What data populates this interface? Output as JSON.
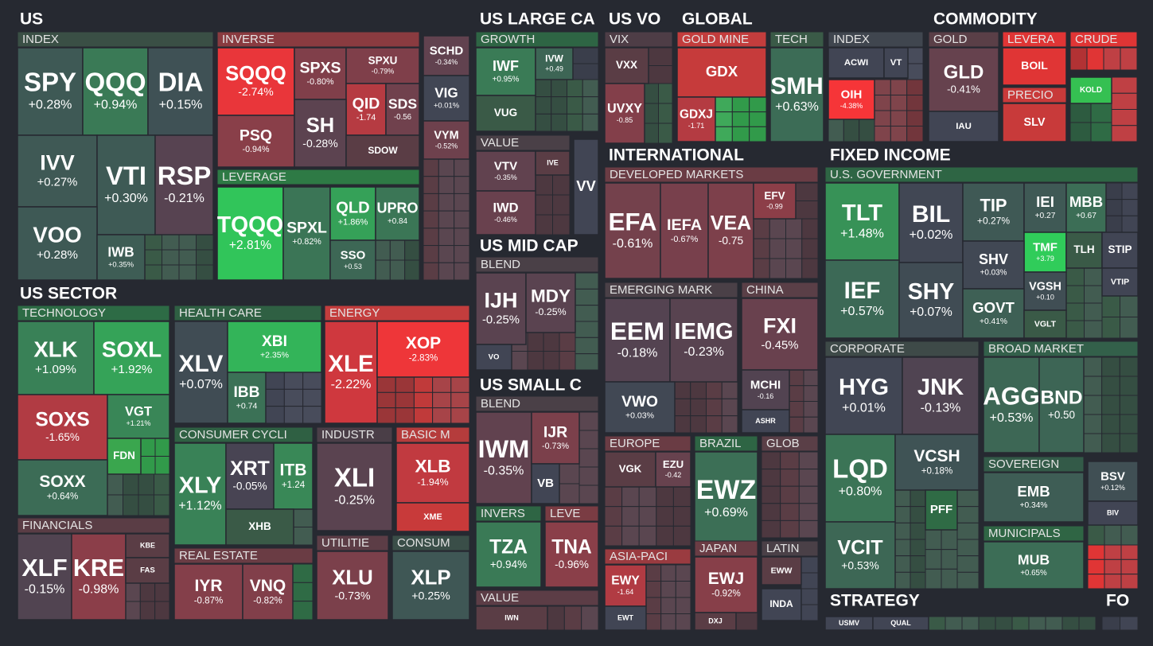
{
  "sections": [
    {
      "title": "US",
      "groups": [
        {
          "title": "INDEX",
          "tiles": [
            {
              "ticker": "SPY",
              "change": "+0.28%"
            },
            {
              "ticker": "QQQ",
              "change": "+0.94%"
            },
            {
              "ticker": "DIA",
              "change": "+0.15%"
            },
            {
              "ticker": "IVV",
              "change": "+0.27%"
            },
            {
              "ticker": "VTI",
              "change": "+0.30%"
            },
            {
              "ticker": "RSP",
              "change": "-0.21%"
            },
            {
              "ticker": "VOO",
              "change": "+0.28%"
            },
            {
              "ticker": "IWB",
              "change": "+0.35%"
            }
          ]
        },
        {
          "title": "INVERSE",
          "tiles": [
            {
              "ticker": "SQQQ",
              "change": "-2.74%"
            },
            {
              "ticker": "SPXS",
              "change": "-0.80%"
            },
            {
              "ticker": "SPXU",
              "change": "-0.79%"
            },
            {
              "ticker": "QID",
              "change": "-1.74"
            },
            {
              "ticker": "SDS",
              "change": "-0.56"
            },
            {
              "ticker": "PSQ",
              "change": "-0.94%"
            },
            {
              "ticker": "SH",
              "change": "-0.28%"
            },
            {
              "ticker": "SDOW"
            }
          ]
        },
        {
          "title": "LEVERAGE",
          "tiles": [
            {
              "ticker": "TQQQ",
              "change": "+2.81%"
            },
            {
              "ticker": "SPXL",
              "change": "+0.82%"
            },
            {
              "ticker": "QLD",
              "change": "+1.86%"
            },
            {
              "ticker": "UPRO",
              "change": "+0.84"
            },
            {
              "ticker": "SSO",
              "change": "+0.53"
            }
          ]
        },
        {
          "tiles": [
            {
              "ticker": "SCHD",
              "change": "-0.34%"
            },
            {
              "ticker": "VIG",
              "change": "+0.01%"
            },
            {
              "ticker": "VYM",
              "change": "-0.52%"
            }
          ]
        }
      ]
    },
    {
      "title": "US SECTOR",
      "groups": [
        {
          "title": "TECHNOLOGY",
          "tiles": [
            {
              "ticker": "XLK",
              "change": "+1.09%"
            },
            {
              "ticker": "SOXL",
              "change": "+1.92%"
            },
            {
              "ticker": "SOXS",
              "change": "-1.65%"
            },
            {
              "ticker": "VGT",
              "change": "+1.21%"
            },
            {
              "ticker": "FDN"
            },
            {
              "ticker": "SOXX",
              "change": "+0.64%"
            }
          ]
        },
        {
          "title": "FINANCIALS",
          "tiles": [
            {
              "ticker": "XLF",
              "change": "-0.15%"
            },
            {
              "ticker": "KRE",
              "change": "-0.98%"
            },
            {
              "ticker": "KBE"
            },
            {
              "ticker": "FAS"
            }
          ]
        },
        {
          "title": "HEALTH CARE",
          "tiles": [
            {
              "ticker": "XLV",
              "change": "+0.07%"
            },
            {
              "ticker": "XBI",
              "change": "+2.35%"
            },
            {
              "ticker": "IBB",
              "change": "+0.74"
            }
          ]
        },
        {
          "title": "CONSUMER CYCLI",
          "tiles": [
            {
              "ticker": "XLY",
              "change": "+1.12%"
            },
            {
              "ticker": "XRT",
              "change": "-0.05%"
            },
            {
              "ticker": "ITB",
              "change": "+1.24"
            },
            {
              "ticker": "XHB"
            }
          ]
        },
        {
          "title": "REAL ESTATE",
          "tiles": [
            {
              "ticker": "IYR",
              "change": "-0.87%"
            },
            {
              "ticker": "VNQ",
              "change": "-0.82%"
            }
          ]
        },
        {
          "title": "ENERGY",
          "tiles": [
            {
              "ticker": "XLE",
              "change": "-2.22%"
            },
            {
              "ticker": "XOP",
              "change": "-2.83%"
            }
          ]
        },
        {
          "title": "INDUSTR",
          "tiles": [
            {
              "ticker": "XLI",
              "change": "-0.25%"
            }
          ]
        },
        {
          "title": "BASIC M",
          "tiles": [
            {
              "ticker": "XLB",
              "change": "-1.94%"
            },
            {
              "ticker": "XME"
            }
          ]
        },
        {
          "title": "UTILITIE",
          "tiles": [
            {
              "ticker": "XLU",
              "change": "-0.73%"
            }
          ]
        },
        {
          "title": "CONSUM",
          "tiles": [
            {
              "ticker": "XLP",
              "change": "+0.25%"
            }
          ]
        }
      ]
    },
    {
      "title": "US LARGE CA",
      "groups": [
        {
          "title": "GROWTH",
          "tiles": [
            {
              "ticker": "IWF",
              "change": "+0.95%"
            },
            {
              "ticker": "IVW",
              "change": "+0.49"
            },
            {
              "ticker": "VUG"
            }
          ]
        },
        {
          "title": "VALUE",
          "tiles": [
            {
              "ticker": "VTV",
              "change": "-0.35%"
            },
            {
              "ticker": "IVE"
            },
            {
              "ticker": "IWD",
              "change": "-0.46%"
            },
            {
              "ticker": "VV"
            }
          ]
        }
      ]
    },
    {
      "title": "US MID CAP",
      "groups": [
        {
          "title": "BLEND",
          "tiles": [
            {
              "ticker": "IJH",
              "change": "-0.25%"
            },
            {
              "ticker": "MDY",
              "change": "-0.25%"
            },
            {
              "ticker": "VO"
            }
          ]
        }
      ]
    },
    {
      "title": "US SMALL C",
      "groups": [
        {
          "title": "BLEND",
          "tiles": [
            {
              "ticker": "IWM",
              "change": "-0.35%"
            },
            {
              "ticker": "IJR",
              "change": "-0.73%"
            },
            {
              "ticker": "VB"
            }
          ]
        },
        {
          "title": "INVERS",
          "tiles": [
            {
              "ticker": "TZA",
              "change": "+0.94%"
            }
          ]
        },
        {
          "title": "LEVE",
          "tiles": [
            {
              "ticker": "TNA",
              "change": "-0.96%"
            }
          ]
        },
        {
          "title": "VALUE",
          "tiles": [
            {
              "ticker": "IWN"
            }
          ]
        }
      ]
    },
    {
      "title": "US VO",
      "groups": [
        {
          "title": "VIX",
          "tiles": [
            {
              "ticker": "VXX"
            },
            {
              "ticker": "UVXY",
              "change": "-0.85"
            }
          ]
        }
      ]
    },
    {
      "title": "GLOBAL",
      "groups": [
        {
          "title": "GOLD MINE",
          "tiles": [
            {
              "ticker": "GDX"
            },
            {
              "ticker": "GDXJ",
              "change": "-1.71"
            }
          ]
        },
        {
          "title": "TECH",
          "tiles": [
            {
              "ticker": "SMH",
              "change": "+0.63%"
            }
          ]
        },
        {
          "title": "INDEX",
          "tiles": [
            {
              "ticker": "ACWI"
            },
            {
              "ticker": "VT"
            },
            {
              "ticker": "OIH",
              "change": "-4.38%"
            }
          ]
        }
      ]
    },
    {
      "title": "COMMODITY",
      "groups": [
        {
          "title": "GOLD",
          "tiles": [
            {
              "ticker": "GLD",
              "change": "-0.41%"
            },
            {
              "ticker": "IAU"
            }
          ]
        },
        {
          "title": "LEVERA",
          "tiles": [
            {
              "ticker": "BOIL"
            }
          ]
        },
        {
          "title": "CRUDE",
          "tiles": []
        },
        {
          "title": "PRECIO",
          "tiles": [
            {
              "ticker": "SLV"
            }
          ]
        },
        {
          "tiles": [
            {
              "ticker": "KOLD"
            }
          ]
        }
      ]
    },
    {
      "title": "INTERNATIONAL",
      "groups": [
        {
          "title": "DEVELOPED MARKETS",
          "tiles": [
            {
              "ticker": "EFA",
              "change": "-0.61%"
            },
            {
              "ticker": "IEFA",
              "change": "-0.67%"
            },
            {
              "ticker": "VEA",
              "change": "-0.75"
            },
            {
              "ticker": "EFV",
              "change": "-0.99"
            }
          ]
        },
        {
          "title": "EMERGING MARK",
          "tiles": [
            {
              "ticker": "EEM",
              "change": "-0.18%"
            },
            {
              "ticker": "IEMG",
              "change": "-0.23%"
            },
            {
              "ticker": "VWO",
              "change": "+0.03%"
            }
          ]
        },
        {
          "title": "CHINA",
          "tiles": [
            {
              "ticker": "FXI",
              "change": "-0.45%"
            },
            {
              "ticker": "MCHI",
              "change": "-0.16"
            },
            {
              "ticker": "ASHR"
            }
          ]
        },
        {
          "title": "EUROPE",
          "tiles": [
            {
              "ticker": "VGK"
            },
            {
              "ticker": "EZU",
              "change": "-0.42"
            }
          ]
        },
        {
          "title": "BRAZIL",
          "tiles": [
            {
              "ticker": "EWZ",
              "change": "+0.69%"
            }
          ]
        },
        {
          "title": "GLOB",
          "tiles": []
        },
        {
          "title": "ASIA-PACI",
          "tiles": [
            {
              "ticker": "EWY",
              "change": "-1.64"
            },
            {
              "ticker": "EWT"
            }
          ]
        },
        {
          "title": "JAPAN",
          "tiles": [
            {
              "ticker": "EWJ",
              "change": "-0.92%"
            },
            {
              "ticker": "DXJ"
            }
          ]
        },
        {
          "title": "LATIN",
          "tiles": [
            {
              "ticker": "EWW"
            },
            {
              "ticker": "INDA"
            }
          ]
        }
      ]
    },
    {
      "title": "FIXED INCOME",
      "groups": [
        {
          "title": "U.S. GOVERNMENT",
          "tiles": [
            {
              "ticker": "TLT",
              "change": "+1.48%"
            },
            {
              "ticker": "BIL",
              "change": "+0.02%"
            },
            {
              "ticker": "TIP",
              "change": "+0.27%"
            },
            {
              "ticker": "IEI",
              "change": "+0.27"
            },
            {
              "ticker": "MBB",
              "change": "+0.67"
            },
            {
              "ticker": "IEF",
              "change": "+0.57%"
            },
            {
              "ticker": "TMF",
              "change": "+3.79"
            },
            {
              "ticker": "TLH"
            },
            {
              "ticker": "STIP"
            },
            {
              "ticker": "SHV",
              "change": "+0.03%"
            },
            {
              "ticker": "SHY",
              "change": "+0.07%"
            },
            {
              "ticker": "VGSH",
              "change": "+0.10"
            },
            {
              "ticker": "VTIP"
            },
            {
              "ticker": "GOVT",
              "change": "+0.41%"
            },
            {
              "ticker": "VGLT"
            }
          ]
        },
        {
          "title": "CORPORATE",
          "tiles": [
            {
              "ticker": "HYG",
              "change": "+0.01%"
            },
            {
              "ticker": "JNK",
              "change": "-0.13%"
            },
            {
              "ticker": "LQD",
              "change": "+0.80%"
            },
            {
              "ticker": "VCSH",
              "change": "+0.18%"
            },
            {
              "ticker": "PFF"
            },
            {
              "ticker": "VCIT",
              "change": "+0.53%"
            }
          ]
        },
        {
          "title": "BROAD MARKET",
          "tiles": [
            {
              "ticker": "AGG",
              "change": "+0.53%"
            },
            {
              "ticker": "BND",
              "change": "+0.50"
            }
          ]
        },
        {
          "title": "SOVEREIGN",
          "tiles": [
            {
              "ticker": "EMB",
              "change": "+0.34%"
            }
          ]
        },
        {
          "title": "MUNICIPALS",
          "tiles": [
            {
              "ticker": "MUB",
              "change": "+0.65%"
            }
          ]
        },
        {
          "tiles": [
            {
              "ticker": "BSV",
              "change": "+0.12%"
            },
            {
              "ticker": "BIV"
            }
          ]
        }
      ]
    },
    {
      "title": "STRATEGY",
      "groups": [
        {
          "tiles": [
            {
              "ticker": "USMV"
            },
            {
              "ticker": "QUAL"
            }
          ]
        }
      ]
    },
    {
      "title": "FO",
      "groups": [
        {
          "tiles": []
        }
      ]
    }
  ]
}
